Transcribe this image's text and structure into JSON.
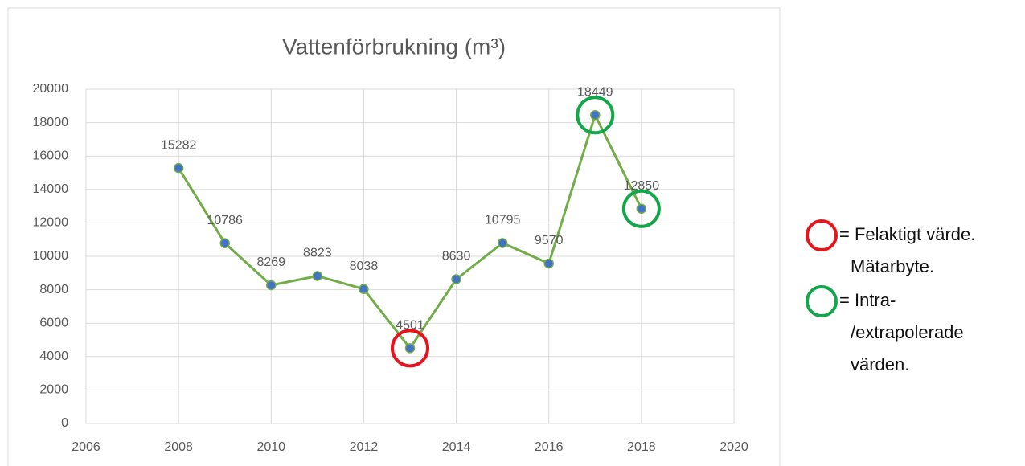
{
  "chart_data": {
    "type": "line",
    "title": "Vattenförbrukning (m³)",
    "x": [
      2008,
      2009,
      2010,
      2011,
      2012,
      2013,
      2014,
      2015,
      2016,
      2017,
      2018
    ],
    "series": [
      {
        "name": "Vattenförbrukning",
        "color": "#70ad47",
        "marker_color": "#4472c4",
        "values": [
          15282,
          10786,
          8269,
          8823,
          8038,
          4501,
          8630,
          10795,
          9570,
          18449,
          12850
        ]
      }
    ],
    "xlim": [
      2006,
      2020
    ],
    "xticks": [
      2006,
      2008,
      2010,
      2012,
      2014,
      2016,
      2018,
      2020
    ],
    "ylim": [
      0,
      20000
    ],
    "yticks": [
      0,
      2000,
      4000,
      6000,
      8000,
      10000,
      12000,
      14000,
      16000,
      18000,
      20000
    ],
    "grid": true,
    "annotations": [
      {
        "color": "#e8141c",
        "points": [
          5
        ],
        "lines": [
          "= Felaktigt värde.",
          "Mätarbyte."
        ]
      },
      {
        "color": "#12a84a",
        "points": [
          9,
          10
        ],
        "lines": [
          "= Intra-",
          "/extrapolerade",
          "värden."
        ]
      }
    ]
  }
}
